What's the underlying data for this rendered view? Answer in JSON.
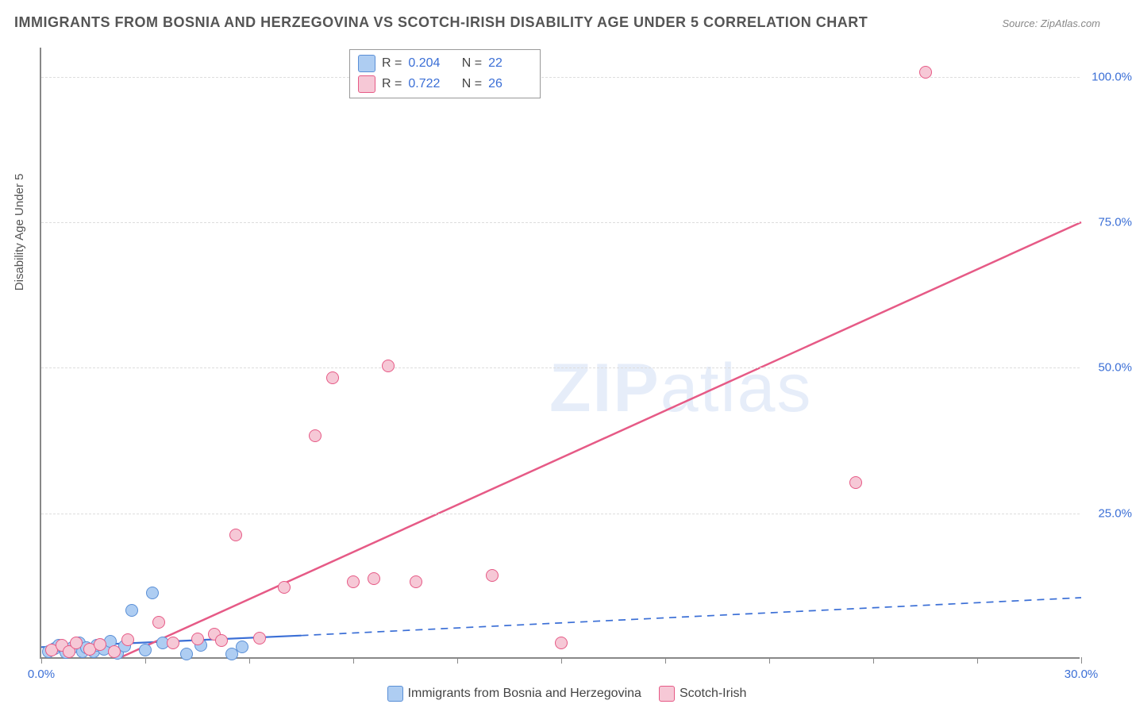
{
  "title": "IMMIGRANTS FROM BOSNIA AND HERZEGOVINA VS SCOTCH-IRISH DISABILITY AGE UNDER 5 CORRELATION CHART",
  "source": "Source: ZipAtlas.com",
  "ylabel": "Disability Age Under 5",
  "watermark_bold": "ZIP",
  "watermark_light": "atlas",
  "chart": {
    "type": "scatter",
    "xlim": [
      0,
      30
    ],
    "ylim": [
      0,
      105
    ],
    "xtick_labels": {
      "0": "0.0%",
      "30": "30.0%"
    },
    "ytick_values": [
      25,
      50,
      75,
      100
    ],
    "ytick_labels": [
      "25.0%",
      "50.0%",
      "75.0%",
      "100.0%"
    ],
    "xtick_positions": [
      0,
      3,
      6,
      9,
      12,
      15,
      18,
      21,
      24,
      27,
      30
    ],
    "background_color": "#ffffff",
    "grid_color": "#dddddd",
    "axis_color": "#888888",
    "marker_size": 16,
    "series": [
      {
        "name": "Immigrants from Bosnia and Herzegovina",
        "fill": "#aecdf2",
        "stroke": "#5a8fd6",
        "r": 0.204,
        "n": 22,
        "line_style": "dashed-extension",
        "line_color": "#3b6fd6",
        "line_width": 2.2,
        "trend_solid": {
          "x1": 0,
          "y1": 2,
          "x2": 7.5,
          "y2": 4
        },
        "trend_dash": {
          "x1": 7.5,
          "y1": 4,
          "x2": 30,
          "y2": 10.5
        },
        "points": [
          {
            "x": 0.2,
            "y": 1.0
          },
          {
            "x": 0.4,
            "y": 1.5
          },
          {
            "x": 0.5,
            "y": 2.0
          },
          {
            "x": 0.7,
            "y": 0.8
          },
          {
            "x": 0.9,
            "y": 1.7
          },
          {
            "x": 1.1,
            "y": 2.4
          },
          {
            "x": 1.2,
            "y": 0.9
          },
          {
            "x": 1.3,
            "y": 1.6
          },
          {
            "x": 1.5,
            "y": 1.0
          },
          {
            "x": 1.6,
            "y": 2.1
          },
          {
            "x": 1.8,
            "y": 1.3
          },
          {
            "x": 2.0,
            "y": 2.7
          },
          {
            "x": 2.2,
            "y": 0.7
          },
          {
            "x": 2.4,
            "y": 1.9
          },
          {
            "x": 2.6,
            "y": 8.0
          },
          {
            "x": 3.0,
            "y": 1.2
          },
          {
            "x": 3.2,
            "y": 11.0
          },
          {
            "x": 3.5,
            "y": 2.5
          },
          {
            "x": 4.2,
            "y": 0.6
          },
          {
            "x": 4.6,
            "y": 2.0
          },
          {
            "x": 5.5,
            "y": 0.5
          },
          {
            "x": 5.8,
            "y": 1.8
          }
        ]
      },
      {
        "name": "Scotch-Irish",
        "fill": "#f6c8d6",
        "stroke": "#e65a86",
        "r": 0.722,
        "n": 26,
        "line_style": "solid",
        "line_color": "#e65a86",
        "line_width": 2.5,
        "trend_solid": {
          "x1": 2.2,
          "y1": 0,
          "x2": 30,
          "y2": 75
        },
        "points": [
          {
            "x": 0.3,
            "y": 1.2
          },
          {
            "x": 0.6,
            "y": 2.0
          },
          {
            "x": 0.8,
            "y": 1.0
          },
          {
            "x": 1.0,
            "y": 2.5
          },
          {
            "x": 1.4,
            "y": 1.3
          },
          {
            "x": 1.7,
            "y": 2.2
          },
          {
            "x": 2.1,
            "y": 1.0
          },
          {
            "x": 2.5,
            "y": 3.0
          },
          {
            "x": 3.4,
            "y": 6.0
          },
          {
            "x": 3.8,
            "y": 2.5
          },
          {
            "x": 4.5,
            "y": 3.2
          },
          {
            "x": 5.0,
            "y": 4.0
          },
          {
            "x": 5.2,
            "y": 2.8
          },
          {
            "x": 5.6,
            "y": 21.0
          },
          {
            "x": 6.3,
            "y": 3.3
          },
          {
            "x": 7.0,
            "y": 12.0
          },
          {
            "x": 7.9,
            "y": 38.0
          },
          {
            "x": 8.4,
            "y": 48.0
          },
          {
            "x": 9.0,
            "y": 13.0
          },
          {
            "x": 9.6,
            "y": 13.5
          },
          {
            "x": 10.0,
            "y": 50.0
          },
          {
            "x": 10.8,
            "y": 13.0
          },
          {
            "x": 13.0,
            "y": 14.0
          },
          {
            "x": 15.0,
            "y": 2.5
          },
          {
            "x": 23.5,
            "y": 30.0
          },
          {
            "x": 25.5,
            "y": 100.5
          }
        ]
      }
    ]
  },
  "legend_top": [
    {
      "series_idx": 0
    },
    {
      "series_idx": 1
    }
  ]
}
